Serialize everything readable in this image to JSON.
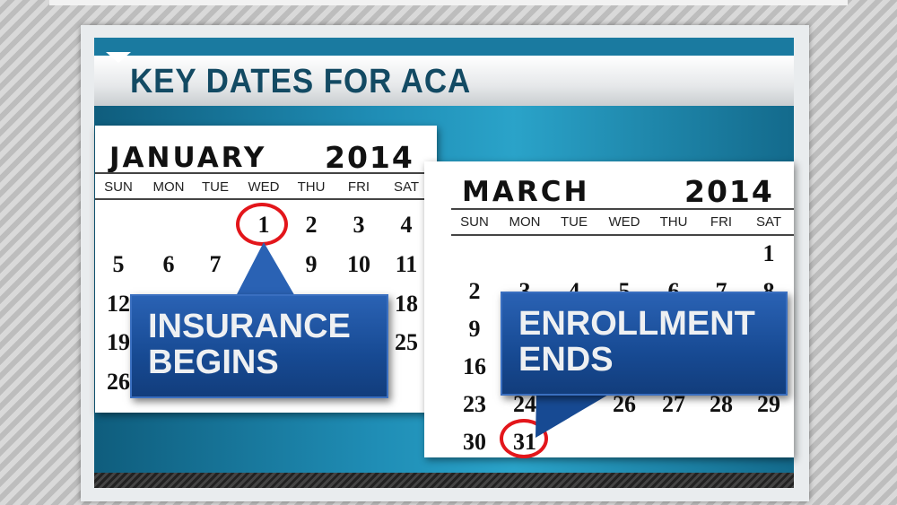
{
  "title": "KEY DATES FOR ACA",
  "colors": {
    "callout_blue": "#1c4f9c",
    "circle_red": "#e3161b",
    "title_text": "#134a63"
  },
  "calendars": [
    {
      "month": "JANUARY",
      "year": "2014",
      "day_names": [
        "SUN",
        "MON",
        "TUE",
        "WED",
        "THU",
        "FRI",
        "SAT"
      ],
      "visible_dates": [
        [
          "",
          "",
          "",
          "1",
          "2",
          "3",
          "4"
        ],
        [
          "5",
          "6",
          "7",
          "",
          "9",
          "10",
          "11"
        ],
        [
          "12",
          "",
          "",
          "",
          "",
          "",
          "18"
        ],
        [
          "19",
          "",
          "",
          "",
          "",
          "",
          "25"
        ],
        [
          "26",
          "",
          "",
          "",
          "",
          "",
          ""
        ]
      ],
      "circled_date": "1",
      "callout": {
        "line1": "INSURANCE",
        "line2": "BEGINS"
      }
    },
    {
      "month": "MARCH",
      "year": "2014",
      "day_names": [
        "SUN",
        "MON",
        "TUE",
        "WED",
        "THU",
        "FRI",
        "SAT"
      ],
      "visible_dates": [
        [
          "",
          "",
          "",
          "",
          "",
          "",
          "1"
        ],
        [
          "2",
          "3",
          "4",
          "5",
          "6",
          "7",
          "8"
        ],
        [
          "9",
          "",
          "",
          "",
          "",
          "",
          ""
        ],
        [
          "16",
          "",
          "",
          "",
          "",
          "",
          ""
        ],
        [
          "23",
          "24",
          "",
          "26",
          "27",
          "28",
          "29"
        ],
        [
          "30",
          "31",
          "",
          "",
          "",
          "",
          ""
        ]
      ],
      "circled_date": "31",
      "callout": {
        "line1": "ENROLLMENT",
        "line2": "ENDS"
      }
    }
  ]
}
